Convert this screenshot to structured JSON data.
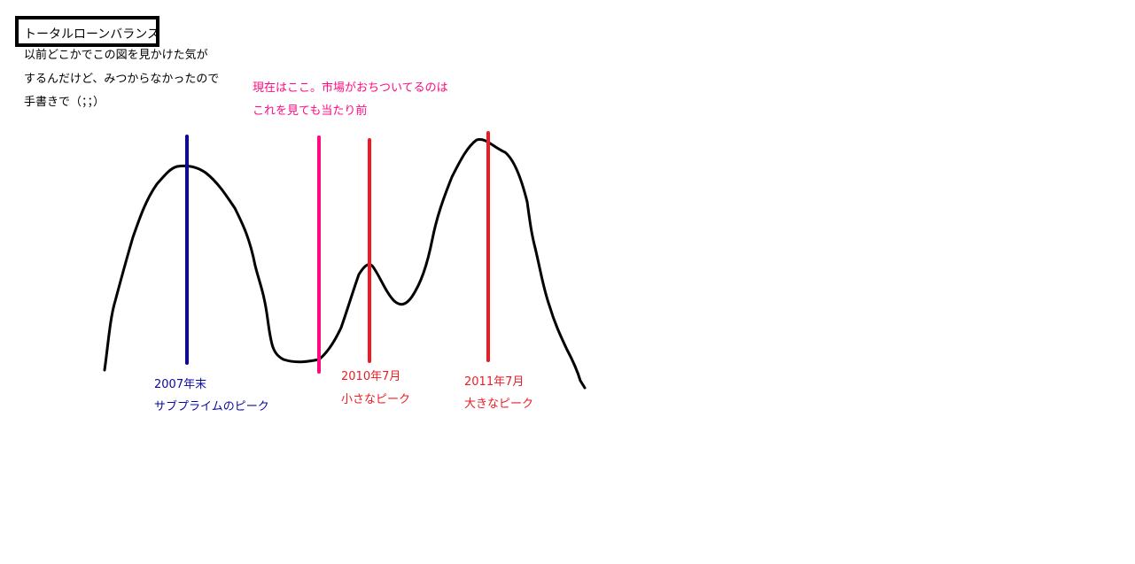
{
  "title": "トータルローンバランス",
  "intro_lines": [
    "以前どこかでこの図を見かけた気が",
    "するんだけど、みつからなかったので",
    "手書きで（；；）"
  ],
  "current_note": [
    "現在はここ。市場がおちついてるのは",
    "これを見ても当たり前"
  ],
  "markers": [
    {
      "date": "2007年末",
      "label": "サブプライムのピーク",
      "color": "#0a0aa0"
    },
    {
      "date": "",
      "label": "",
      "color": "#ff0a7f"
    },
    {
      "date": "2010年7月",
      "label": "小さなピーク",
      "color": "#ed1c24"
    },
    {
      "date": "2011年7月",
      "label": "大きなピーク",
      "color": "#ed1c24"
    }
  ],
  "colors": {
    "curve": "#000000",
    "intro_text": "#000000",
    "current_note": "#ff0a7f"
  }
}
